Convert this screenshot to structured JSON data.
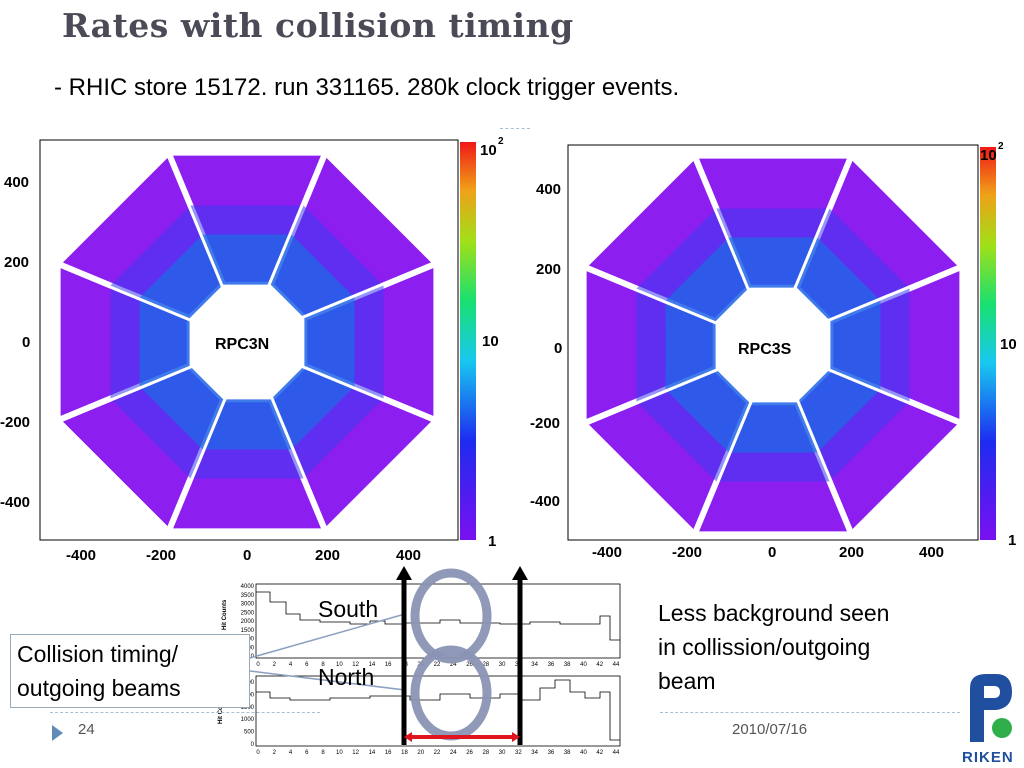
{
  "slide": {
    "title": "Rates with collision timing",
    "subtitle": "- RHIC store 15172. run 331165. 280k clock trigger events.",
    "page_number": "24",
    "date": "2010/07/16",
    "logo_text": "RIKEN"
  },
  "panels": [
    {
      "label": "RPC3N",
      "y_ticks": [
        "400",
        "200",
        "0",
        "-200",
        "-400"
      ],
      "x_ticks": [
        "-400",
        "-200",
        "0",
        "200",
        "400"
      ],
      "colorbar": {
        "top": "10",
        "top_exp": "2",
        "mid": "10",
        "bottom": "1"
      }
    },
    {
      "label": "RPC3S",
      "y_ticks": [
        "400",
        "200",
        "0",
        "-200",
        "-400"
      ],
      "x_ticks": [
        "-400",
        "-200",
        "0",
        "200",
        "400"
      ],
      "colorbar": {
        "top": "10",
        "top_exp": "2",
        "mid": "10",
        "bottom": "1"
      }
    }
  ],
  "histograms": {
    "y_axis_label": "Hit Counts",
    "top_y_ticks": [
      "4000",
      "3500",
      "3000",
      "2500",
      "2000",
      "1500",
      "1000",
      "500",
      "0"
    ],
    "bottom_y_ticks": [
      "2500",
      "2000",
      "1500",
      "1000",
      "500",
      "0"
    ],
    "x_ticks": [
      "0",
      "2",
      "4",
      "6",
      "8",
      "10",
      "12",
      "14",
      "16",
      "18",
      "20",
      "22",
      "24",
      "26",
      "28",
      "30",
      "32",
      "34",
      "36",
      "38",
      "40",
      "42",
      "44"
    ]
  },
  "annotations": {
    "south": "South",
    "north": "North",
    "collision_line1": "Collision timing/",
    "collision_line2": "outgoing beams",
    "less_bg": "Less background seen in collission/outgoing beam"
  },
  "colors": {
    "title": "#4b4b57",
    "detector_fill": "#8c1ef0",
    "arrow": "#000000",
    "bracket": "#e0141e",
    "ring": "#8a94b4"
  }
}
